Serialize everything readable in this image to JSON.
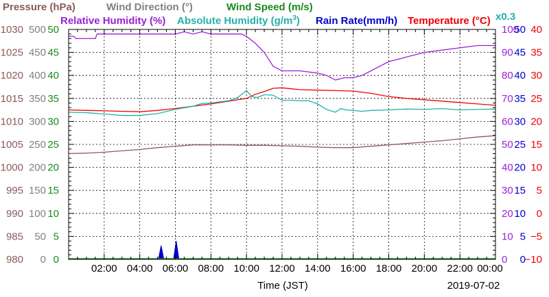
{
  "chart_data": {
    "type": "line",
    "date": "2019-07-02",
    "xlabel": "Time (JST)",
    "x_tick_labels": [
      "02:00",
      "04:00",
      "06:00",
      "08:00",
      "10:00",
      "12:00",
      "14:00",
      "16:00",
      "18:00",
      "20:00",
      "22:00",
      "00:00"
    ],
    "x_range_hours": [
      0,
      24
    ],
    "grid": true,
    "legend_row1": [
      {
        "key": "pressure",
        "text": "Pressure (hPa)",
        "color": "#8b5a5a"
      },
      {
        "key": "wind_dir",
        "text": "Wind Direction (°)",
        "color": "#808080"
      },
      {
        "key": "wind_speed",
        "text": "Wind Speed (m/s)",
        "color": "#1a8a1a"
      }
    ],
    "legend_row2": [
      {
        "key": "rh",
        "text": "Relative Humidity (%)",
        "color": "#9a1fd6"
      },
      {
        "key": "ah",
        "text": "Absolute Humidity (g/m³)",
        "color": "#20b2aa",
        "suffix": "x0.3"
      },
      {
        "key": "rain",
        "text": "Rain Rate(mm/h)",
        "color": "#0000cc"
      },
      {
        "key": "temp",
        "text": "Temperature (°C)",
        "color": "#ee0000"
      }
    ],
    "left_axes": [
      {
        "key": "pressure",
        "color": "#8b5a5a",
        "ticks": [
          "1030",
          "1025",
          "1020",
          "1015",
          "1010",
          "1005",
          "1000",
          "995",
          "990",
          "985",
          "980"
        ],
        "range": [
          980,
          1030
        ]
      },
      {
        "key": "wind_dir",
        "color": "#808080",
        "ticks": [
          "500",
          "450",
          "400",
          "350",
          "300",
          "250",
          "200",
          "150",
          "100",
          "50",
          "0"
        ],
        "range": [
          0,
          500
        ]
      },
      {
        "key": "wind_speed",
        "color": "#1a8a1a",
        "ticks": [
          "50",
          "45",
          "40",
          "35",
          "30",
          "25",
          "20",
          "15",
          "10",
          "5",
          "0"
        ],
        "range": [
          0,
          50
        ]
      }
    ],
    "right_axes": [
      {
        "key": "rh",
        "color": "#9a1fd6",
        "ticks": [
          "100",
          "90",
          "80",
          "70",
          "60",
          "50",
          "40",
          "30",
          "20",
          "10",
          "0"
        ],
        "range": [
          0,
          100
        ]
      },
      {
        "key": "rain",
        "color": "#0000cc",
        "ticks": [
          "50",
          "45",
          "40",
          "35",
          "30",
          "25",
          "20",
          "15",
          "10",
          "5",
          "0"
        ],
        "range": [
          0,
          50
        ]
      },
      {
        "key": "temp",
        "color": "#ee0000",
        "ticks": [
          "40",
          "35",
          "30",
          "25",
          "20",
          "15",
          "10",
          "5",
          "0",
          "−5",
          "−10"
        ],
        "range": [
          -10,
          40
        ]
      }
    ],
    "series": [
      {
        "name": "Relative Humidity (%)",
        "key": "rh",
        "axis": "rh",
        "color": "#9a1fd6",
        "x": [
          0,
          0.3,
          0.4,
          1.5,
          1.6,
          2,
          4,
          5,
          6,
          6.5,
          7,
          7.5,
          8,
          9,
          9.7,
          10,
          10.5,
          11,
          11.5,
          12,
          12.5,
          13,
          14,
          14.5,
          15,
          15.5,
          16,
          16.5,
          17,
          17.5,
          18,
          18.5,
          19,
          20,
          21,
          22,
          23,
          24
        ],
        "y": [
          97,
          97,
          96,
          96,
          98,
          98,
          98,
          98,
          98,
          99,
          98,
          99,
          98,
          98,
          98,
          97,
          94,
          90,
          84,
          82,
          82,
          82,
          81,
          80,
          78,
          79,
          79,
          80,
          82,
          84,
          86,
          87,
          88,
          90,
          91,
          92,
          93,
          93
        ]
      },
      {
        "name": "Temperature (°C)",
        "key": "temp",
        "axis": "temp",
        "color": "#ee0000",
        "x": [
          0,
          1,
          2,
          3,
          4,
          5,
          6,
          7,
          8,
          9,
          10,
          10.5,
          11,
          11.5,
          12,
          12.5,
          13,
          14,
          15,
          16,
          17,
          18,
          19,
          20,
          21,
          22,
          23,
          24
        ],
        "y": [
          22.5,
          22.4,
          22.3,
          22.2,
          22.1,
          22.4,
          22.8,
          23.3,
          23.8,
          24.4,
          25,
          25.9,
          26.5,
          27.2,
          27.3,
          27.1,
          26.9,
          26.8,
          26.7,
          26.6,
          26.1,
          25.4,
          25,
          24.7,
          24.4,
          24.1,
          23.8,
          23.5
        ]
      },
      {
        "name": "Absolute Humidity (g/m³)",
        "key": "ah",
        "axis": "temp",
        "color": "#20b2aa",
        "x": [
          0,
          1,
          2,
          3,
          4,
          5,
          6,
          7,
          7.5,
          8,
          9,
          9.5,
          10,
          10.3,
          10.6,
          11,
          11.5,
          12,
          12.5,
          13,
          13.5,
          14,
          14.5,
          15,
          15.3,
          15.6,
          16,
          16.5,
          17,
          18,
          19,
          20,
          21,
          22,
          23,
          24
        ],
        "y": [
          22,
          21.9,
          21.6,
          21.3,
          21.3,
          21.7,
          22.6,
          23.3,
          23.9,
          24,
          24.5,
          25.2,
          26.7,
          25.4,
          25.2,
          25.8,
          25.7,
          24.6,
          24.6,
          24.5,
          24.5,
          23.8,
          22.6,
          22,
          22.8,
          22.5,
          22.4,
          22.2,
          22.4,
          22.5,
          22.7,
          22.6,
          22.8,
          22.5,
          22.6,
          22.7
        ]
      },
      {
        "name": "Pressure (hPa)",
        "key": "pressure",
        "axis": "pressure",
        "color": "#8b5a5a",
        "x": [
          0,
          1,
          2,
          3,
          4,
          5,
          6,
          7,
          8,
          9,
          10,
          11,
          12,
          13,
          14,
          15,
          16,
          17,
          18,
          19,
          20,
          21,
          22,
          23,
          24
        ],
        "y": [
          1003,
          1003.1,
          1003.3,
          1003.6,
          1003.9,
          1004.3,
          1004.6,
          1004.9,
          1004.9,
          1004.9,
          1004.8,
          1004.8,
          1004.7,
          1004.6,
          1004.4,
          1004.3,
          1004.3,
          1004.6,
          1004.9,
          1005.2,
          1005.5,
          1005.8,
          1006.2,
          1006.6,
          1006.9
        ]
      },
      {
        "name": "Rain Rate(mm/h)",
        "key": "rain",
        "axis": "rain",
        "color": "#0000cc",
        "x": [
          0,
          5.05,
          5.2,
          5.35,
          5.9,
          6.05,
          6.2,
          24
        ],
        "y": [
          0,
          0,
          3,
          0,
          0,
          4,
          0,
          0
        ]
      }
    ]
  }
}
